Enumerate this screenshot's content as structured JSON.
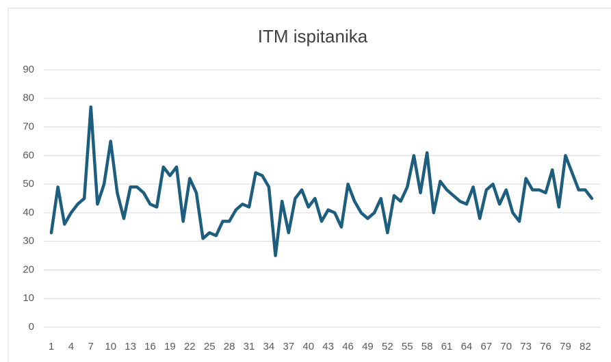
{
  "chart_data": {
    "type": "line",
    "title": "ITM ispitanika",
    "categories": [
      1,
      null,
      null,
      4,
      null,
      null,
      7,
      null,
      null,
      10,
      null,
      null,
      13,
      null,
      null,
      16,
      null,
      null,
      19,
      null,
      null,
      22,
      null,
      null,
      25,
      null,
      null,
      28,
      null,
      null,
      31,
      null,
      null,
      34,
      null,
      null,
      37,
      null,
      null,
      40,
      null,
      null,
      43,
      null,
      null,
      46,
      null,
      null,
      49,
      null,
      null,
      52,
      null,
      null,
      55,
      null,
      null,
      58,
      null,
      null,
      61,
      null,
      null,
      64,
      null,
      null,
      67,
      null,
      null,
      70,
      null,
      null,
      73,
      null,
      null,
      76,
      null,
      null,
      79,
      null,
      null,
      82,
      null
    ],
    "values": [
      33,
      49,
      36,
      40,
      43,
      45,
      77,
      43,
      50,
      65,
      47,
      38,
      49,
      49,
      47,
      43,
      42,
      56,
      53,
      56,
      37,
      52,
      47,
      31,
      33,
      32,
      37,
      37,
      41,
      43,
      42,
      54,
      53,
      49,
      25,
      44,
      33,
      45,
      48,
      42,
      45,
      37,
      41,
      40,
      35,
      50,
      44,
      40,
      38,
      40,
      45,
      33,
      46,
      44,
      49,
      60,
      47,
      61,
      40,
      51,
      48,
      46,
      44,
      43,
      49,
      38,
      48,
      50,
      43,
      48,
      40,
      37,
      52,
      48,
      48,
      47,
      55,
      42,
      60,
      54,
      48,
      48,
      45
    ],
    "color": "#1d5e7e",
    "ylim": [
      0,
      90
    ],
    "yticks": [
      0,
      10,
      20,
      30,
      40,
      50,
      60,
      70,
      80,
      90
    ],
    "grid": true
  }
}
